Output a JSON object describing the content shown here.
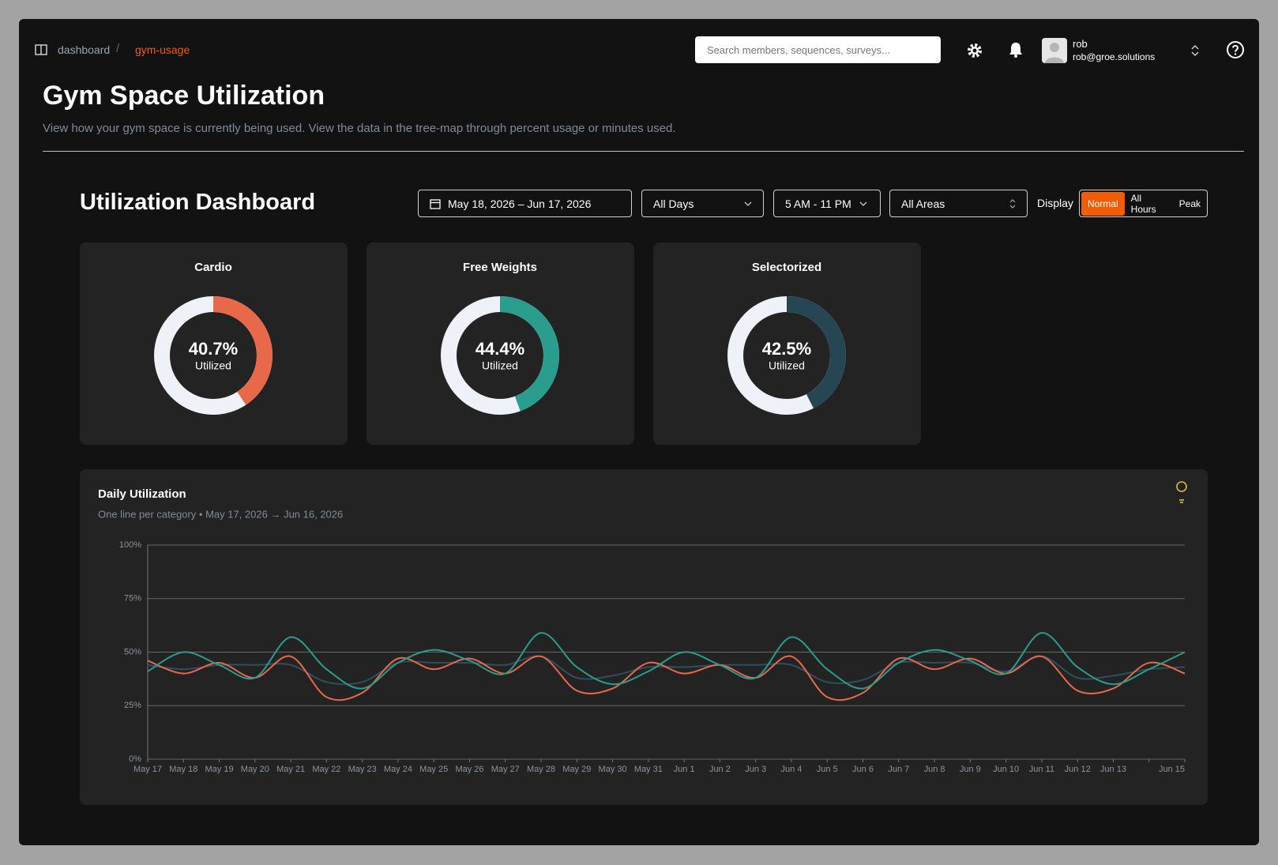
{
  "breadcrumb": [
    "dashboard",
    "gym-usage"
  ],
  "search_placeholder": "Search members, sequences, surveys...",
  "user": {
    "name": "rob",
    "email": "rob@groe.solutions"
  },
  "header": {
    "title": "Gym Space Utilization",
    "subtitle": "View how your gym space is currently being used. View the data in the tree-map through percent usage or minutes used."
  },
  "dashboard": {
    "title": "Utilization Dashboard",
    "date_range": "May 18, 2026 – Jun 17, 2026",
    "days": "All Days",
    "hours": "5 AM - 11 PM",
    "areas": "All Areas",
    "display_label": "Display",
    "display_options": [
      "Normal",
      "All Hours",
      "Peak"
    ]
  },
  "chart_data": [
    {
      "type": "donut",
      "title": "Cardio",
      "values": [
        40.7
      ],
      "value_labels": [
        "40.7%"
      ],
      "center_label": "Utilized",
      "color": "#e8694a",
      "track_color": "#eef2f8"
    },
    {
      "type": "donut",
      "title": "Free Weights",
      "values": [
        44.4
      ],
      "value_labels": [
        "44.4%"
      ],
      "center_label": "Utilized",
      "color": "#2a9d8f",
      "track_color": "#eef2f8"
    },
    {
      "type": "donut",
      "title": "Selectorized",
      "values": [
        42.5
      ],
      "value_labels": [
        "42.5%"
      ],
      "center_label": "Utilized",
      "color": "#264653",
      "track_color": "#eef2f8"
    },
    {
      "type": "line",
      "title": "Daily Utilization",
      "subtitle": "One line per category • May 17, 2026 → Jun 16, 2026",
      "categories": [
        "May 17",
        "May 18",
        "May 19",
        "May 20",
        "May 21",
        "May 22",
        "May 23",
        "May 24",
        "May 25",
        "May 26",
        "May 27",
        "May 28",
        "May 29",
        "May 30",
        "May 31",
        "Jun 1",
        "Jun 2",
        "Jun 3",
        "Jun 4",
        "Jun 5",
        "Jun 6",
        "Jun 7",
        "Jun 8",
        "Jun 9",
        "Jun 10",
        "Jun 11",
        "Jun 12",
        "Jun 13",
        null,
        "Jun 15"
      ],
      "series": [
        {
          "color": "#e8694a",
          "values": [
            46,
            40,
            45,
            38,
            48,
            29,
            31,
            47,
            42,
            47,
            40,
            48,
            32,
            33,
            45,
            40,
            44,
            38,
            48,
            29,
            31,
            47,
            42,
            47,
            40,
            48,
            32,
            33,
            45,
            40
          ]
        },
        {
          "color": "#2a9d8f",
          "values": [
            41,
            50,
            44,
            38,
            57,
            42,
            33,
            45,
            51,
            46,
            40,
            59,
            43,
            35,
            41,
            50,
            44,
            38,
            57,
            42,
            33,
            45,
            51,
            46,
            40,
            59,
            43,
            35,
            42,
            50
          ]
        },
        {
          "color": "#2f4f5f",
          "values": [
            44,
            42,
            44,
            44,
            44,
            36,
            36,
            45,
            45,
            45,
            44,
            48,
            38,
            39,
            43,
            43,
            44,
            44,
            44,
            36,
            37,
            45,
            45,
            45,
            41,
            48,
            38,
            39,
            42,
            43
          ]
        }
      ],
      "ylim": [
        0,
        100
      ],
      "yticks": [
        {
          "value": 0,
          "label": "0%"
        },
        {
          "value": 25,
          "label": "25%"
        },
        {
          "value": 50,
          "label": "50%"
        },
        {
          "value": 75,
          "label": "75%"
        },
        {
          "value": 100,
          "label": "100%"
        }
      ],
      "grid": true
    }
  ]
}
